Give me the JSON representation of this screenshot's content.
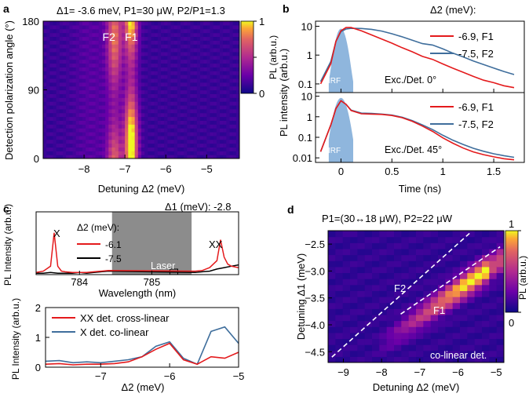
{
  "colors": {
    "red": "#e41a1c",
    "blue": "#3f6e9c",
    "black": "#000000",
    "irf": "#8fb6dd",
    "laser": "#8c8c8c",
    "white_dash": "#ffffff"
  },
  "chart_data": [
    {
      "panel": "a",
      "type": "heatmap",
      "title": "Δ1= -3.6 meV, P1=30 μW, P2/P1=1.3",
      "xlabel": "Detuning Δ2 (meV)",
      "ylabel": "Detection polarization angle (°)",
      "xlim": [
        -9,
        -4.2
      ],
      "ylim": [
        0,
        180
      ],
      "xticks": [
        -8,
        -7,
        -6,
        -5
      ],
      "yticks": [
        0,
        90,
        180
      ],
      "colorbar": {
        "label": "PL (arb.u.)",
        "ticks": [
          0,
          0.5,
          1
        ],
        "colormap": "plasma"
      },
      "peaks": [
        {
          "label": "F2",
          "x": -7.25,
          "angle_max": 160,
          "amplitude": 0.65
        },
        {
          "label": "F1",
          "x": -6.85,
          "angle_max": 20,
          "amplitude": 1.0
        }
      ],
      "annotations": [
        "F2",
        "F1"
      ]
    },
    {
      "panel": "b",
      "type": "line",
      "xlabel": "Time (ns)",
      "ylabel": "PL intensity (arb.u.)",
      "xlim": [
        -0.25,
        1.8
      ],
      "xticks": [
        0,
        0.5,
        1,
        1.5
      ],
      "legend_title": "Δ2 (meV):",
      "subplots": [
        {
          "annotation": "Exc./Det. 0°",
          "ylim": [
            0.05,
            15
          ],
          "yticks": [
            0.1,
            1,
            10
          ],
          "series": [
            {
              "name": "-6.9, F1",
              "color": "red",
              "x": [
                -0.2,
                -0.1,
                -0.05,
                0,
                0.05,
                0.1,
                0.2,
                0.3,
                0.4,
                0.5,
                0.6,
                0.7,
                0.8,
                0.9,
                1.0,
                1.1,
                1.2,
                1.3,
                1.4,
                1.5,
                1.6,
                1.7
              ],
              "y": [
                0.1,
                0.5,
                3,
                7,
                9,
                9,
                7,
                5,
                3.6,
                2.6,
                1.8,
                1.3,
                0.9,
                0.6,
                0.42,
                0.3,
                0.22,
                0.16,
                0.12,
                0.1,
                0.08,
                0.07
              ]
            },
            {
              "name": "-7.5, F2",
              "color": "blue",
              "x": [
                -0.2,
                -0.1,
                -0.05,
                0,
                0.05,
                0.1,
                0.2,
                0.3,
                0.4,
                0.5,
                0.6,
                0.7,
                0.8,
                0.9,
                1.0,
                1.1,
                1.2,
                1.3,
                1.4,
                1.5,
                1.6,
                1.7
              ],
              "y": [
                0.12,
                0.6,
                3,
                6.5,
                8,
                8.5,
                8.4,
                7.8,
                6.8,
                5.5,
                4.3,
                3.3,
                2.5,
                1.9,
                1.4,
                1.0,
                0.75,
                0.55,
                0.42,
                0.32,
                0.25,
                0.2
              ]
            }
          ],
          "irf": {
            "label": "IRF"
          }
        },
        {
          "annotation": "Exc./Det. 45°",
          "ylim": [
            0.006,
            15
          ],
          "yticks": [
            0.01,
            0.1,
            1,
            10
          ],
          "series": [
            {
              "name": "-6.9, F1",
              "color": "red",
              "x": [
                -0.2,
                -0.1,
                -0.05,
                0,
                0.05,
                0.1,
                0.2,
                0.3,
                0.4,
                0.5,
                0.6,
                0.7,
                0.8,
                0.9,
                1.0,
                1.1,
                1.2,
                1.3,
                1.4,
                1.5,
                1.6,
                1.7
              ],
              "y": [
                0.02,
                0.4,
                2.5,
                6,
                4,
                2,
                1.4,
                1.35,
                1.3,
                1.15,
                0.9,
                0.6,
                0.35,
                0.18,
                0.09,
                0.05,
                0.03,
                0.02,
                0.015,
                0.012,
                0.01,
                0.009
              ]
            },
            {
              "name": "-7.5, F2",
              "color": "blue",
              "x": [
                -0.2,
                -0.1,
                -0.05,
                0,
                0.05,
                0.1,
                0.2,
                0.3,
                0.4,
                0.5,
                0.6,
                0.7,
                0.8,
                0.9,
                1.0,
                1.1,
                1.2,
                1.3,
                1.4,
                1.5,
                1.6,
                1.7
              ],
              "y": [
                0.02,
                0.4,
                2.5,
                6,
                4,
                2.1,
                1.5,
                1.45,
                1.35,
                1.2,
                0.95,
                0.65,
                0.4,
                0.22,
                0.12,
                0.07,
                0.045,
                0.03,
                0.022,
                0.017,
                0.014,
                0.012
              ]
            }
          ],
          "irf": {
            "label": "IRF"
          }
        }
      ]
    },
    {
      "panel": "c",
      "type": "line",
      "title": "Δ1 (meV): -2.8",
      "subplots": [
        {
          "xlabel": "Wavelength (nm)",
          "ylabel": "PL Intensity (arb.u.)",
          "xlim": [
            783.4,
            786.2
          ],
          "xticks": [
            784,
            785
          ],
          "legend_title": "Δ2 (meV):",
          "annotations": [
            "X",
            "XX",
            "Laser"
          ],
          "laser_band_nm": [
            784.45,
            785.55
          ],
          "series": [
            {
              "name": "-6.1",
              "color": "red",
              "x": [
                783.4,
                783.5,
                783.6,
                783.65,
                783.7,
                783.75,
                783.8,
                783.9,
                784.0,
                784.1,
                784.2,
                784.3,
                784.4,
                785.6,
                785.7,
                785.8,
                785.9,
                785.95,
                786.0,
                786.05,
                786.1,
                786.2
              ],
              "y": [
                0.03,
                0.05,
                0.12,
                0.6,
                0.12,
                0.05,
                0.04,
                0.03,
                0.03,
                0.03,
                0.04,
                0.05,
                0.06,
                0.05,
                0.06,
                0.1,
                0.2,
                0.5,
                0.25,
                0.15,
                0.12,
                0.1
              ]
            },
            {
              "name": "-7.5",
              "color": "black",
              "x": [
                783.4,
                783.5,
                783.6,
                783.7,
                783.8,
                783.9,
                784.0,
                784.1,
                784.2,
                784.3,
                784.4,
                785.6,
                785.7,
                785.8,
                785.9,
                786.0,
                786.1,
                786.2
              ],
              "y": [
                0.02,
                0.02,
                0.03,
                0.02,
                0.02,
                0.02,
                0.03,
                0.02,
                0.03,
                0.04,
                0.05,
                0.03,
                0.04,
                0.05,
                0.08,
                0.1,
                0.12,
                0.14
              ]
            }
          ]
        },
        {
          "xlabel": "Δ2 (meV)",
          "ylabel": "PL Intensity (arb.u.)",
          "xlim": [
            -7.8,
            -5
          ],
          "ylim": [
            0,
            2
          ],
          "xticks": [
            -7,
            -6,
            -5
          ],
          "yticks": [
            0,
            1,
            2
          ],
          "series": [
            {
              "name": "XX det. cross-linear",
              "color": "red",
              "x": [
                -7.8,
                -7.6,
                -7.4,
                -7.2,
                -7.0,
                -6.8,
                -6.6,
                -6.4,
                -6.2,
                -6.0,
                -5.8,
                -5.6,
                -5.4,
                -5.2,
                -5.0
              ],
              "y": [
                0.1,
                0.12,
                0.08,
                0.1,
                0.1,
                0.12,
                0.18,
                0.35,
                0.6,
                0.8,
                0.25,
                0.1,
                0.35,
                0.3,
                0.5
              ]
            },
            {
              "name": "X det. co-linear",
              "color": "blue",
              "x": [
                -7.8,
                -7.6,
                -7.4,
                -7.2,
                -7.0,
                -6.8,
                -6.6,
                -6.4,
                -6.2,
                -6.0,
                -5.8,
                -5.6,
                -5.4,
                -5.2,
                -5.0
              ],
              "y": [
                0.2,
                0.22,
                0.15,
                0.18,
                0.15,
                0.2,
                0.25,
                0.35,
                0.7,
                0.85,
                0.3,
                0.1,
                1.2,
                1.35,
                0.8
              ]
            }
          ]
        }
      ]
    },
    {
      "panel": "d",
      "type": "heatmap",
      "title": "P1=(30↔18 μW), P2=22 μW",
      "xlabel": "Detuning Δ2 (meV)",
      "ylabel": "Detuning Δ1 (meV)",
      "xlim": [
        -9.4,
        -4.8
      ],
      "ylim": [
        -4.7,
        -2.25
      ],
      "xticks": [
        -9,
        -8,
        -7,
        -6,
        -5
      ],
      "yticks": [
        -4.5,
        -4.0,
        -3.5,
        -3.0,
        -2.5
      ],
      "colorbar": {
        "label": "PL (arb.u.)",
        "ticks": [
          0,
          1
        ],
        "colormap": "plasma"
      },
      "annotations": [
        "F2",
        "F1",
        "co-linear det."
      ],
      "dashed_lines": [
        {
          "x": [
            -9.3,
            -5.7
          ],
          "y": [
            -4.6,
            -2.3
          ]
        },
        {
          "x": [
            -7.5,
            -4.9
          ],
          "y": [
            -3.8,
            -2.55
          ]
        }
      ]
    }
  ],
  "labels": {
    "a": "a",
    "b": "b",
    "c": "c",
    "d": "d",
    "a_title": "Δ1= -3.6 meV, P1=30 μW, P2/P1=1.3",
    "d_title": "P1=(30↔18 μW), P2=22 μW",
    "c_title": "Δ1 (meV): -2.8",
    "b_legend_title": "Δ2 (meV):",
    "c_legend_title": "Δ2 (meV):"
  }
}
